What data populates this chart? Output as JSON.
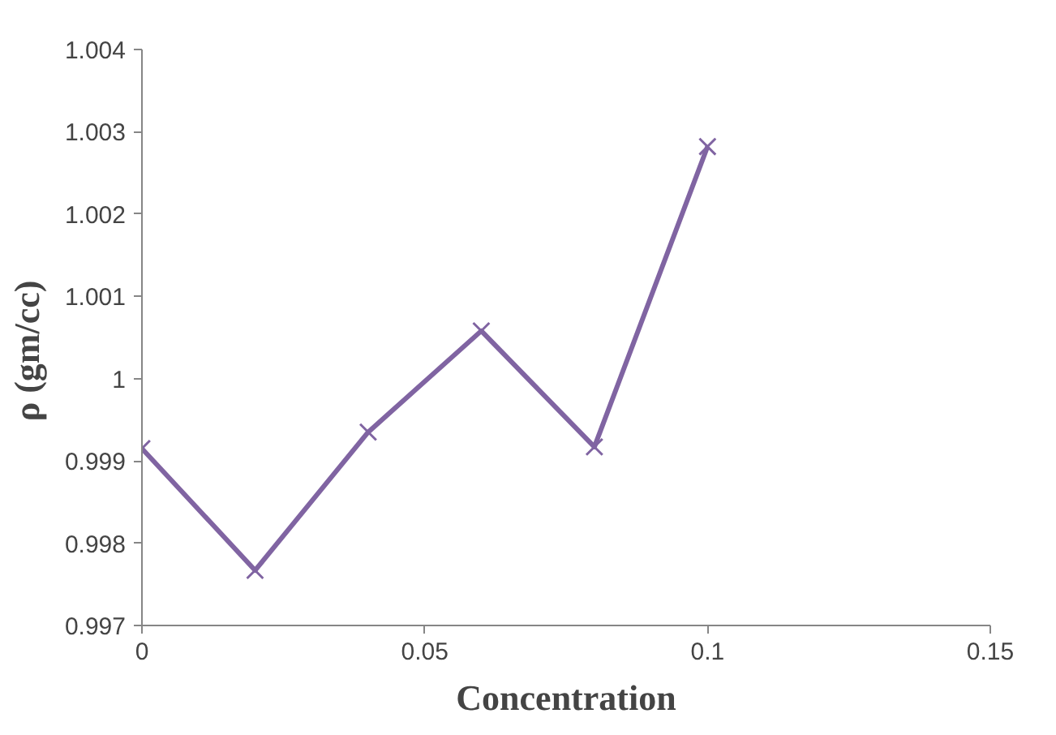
{
  "chart_data": {
    "type": "line",
    "xlabel": "Concentration",
    "ylabel": "ρ    (gm/cc)",
    "x": [
      0,
      0.02,
      0.04,
      0.06,
      0.08,
      0.1
    ],
    "series": [
      {
        "color": "#8064a2",
        "values": [
          0.99915,
          0.99767,
          0.99935,
          1.00058,
          0.99917,
          1.00282
        ]
      }
    ],
    "xlim": [
      0,
      0.15
    ],
    "xticks": [
      0,
      0.05,
      0.1,
      0.15
    ],
    "ylim": [
      0.997,
      1.004
    ],
    "yticks": [
      0.997,
      0.998,
      0.999,
      1,
      1.001,
      1.002,
      1.003,
      1.004
    ],
    "grid": false,
    "marker": "cross",
    "line_style": "solid"
  }
}
